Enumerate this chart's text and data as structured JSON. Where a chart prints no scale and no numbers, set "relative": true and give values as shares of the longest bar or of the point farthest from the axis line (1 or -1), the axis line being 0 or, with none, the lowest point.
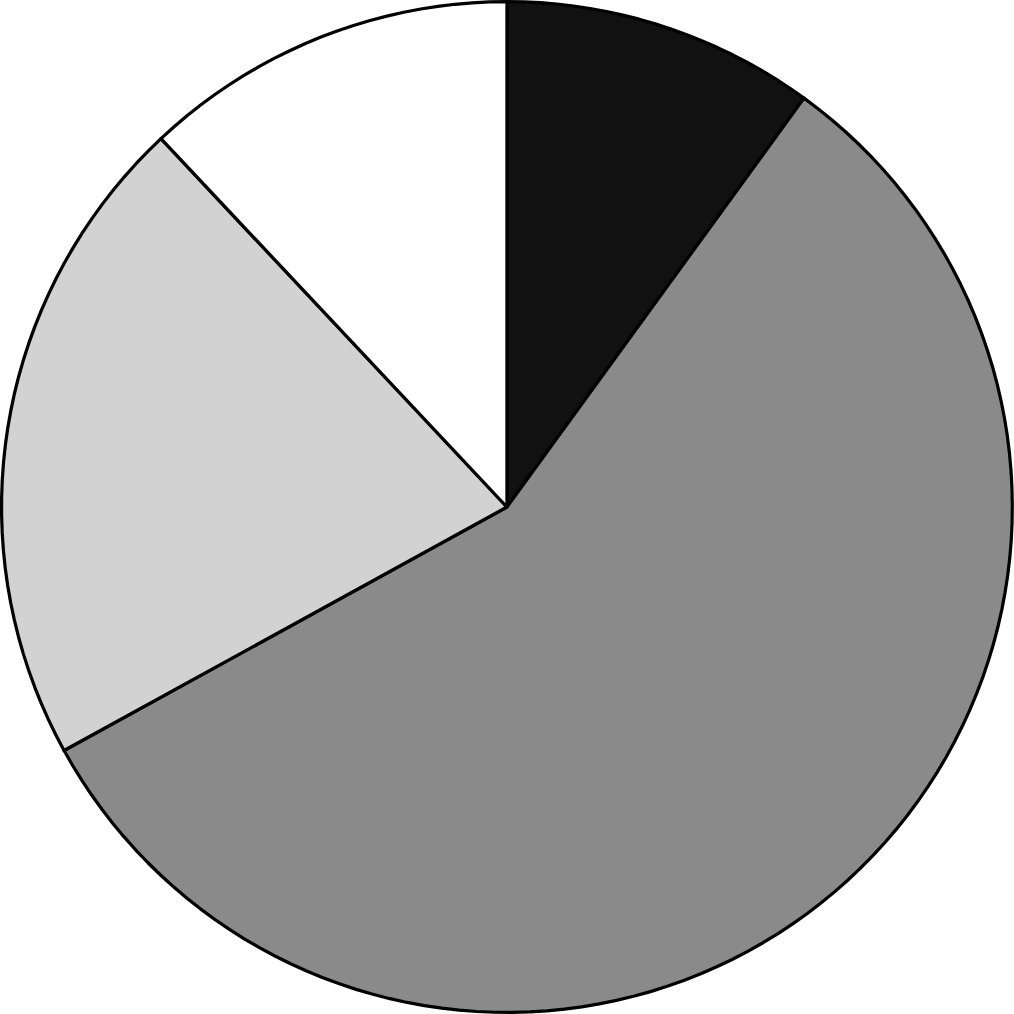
{
  "chart_data": {
    "type": "pie",
    "relative": true,
    "categories": [
      null,
      null,
      null,
      null
    ],
    "values": [
      10,
      57,
      21,
      12
    ],
    "colors": [
      "#111111",
      "#8a8a8a",
      "#d2d2d2",
      "#ffffff"
    ]
  }
}
